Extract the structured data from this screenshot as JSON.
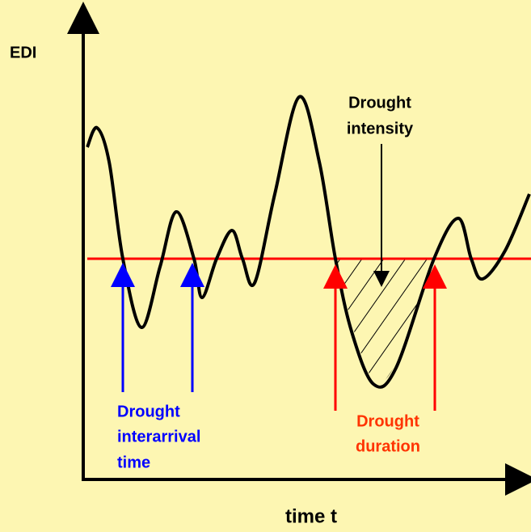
{
  "y_axis_label": "EDI",
  "x_axis_label": "time t",
  "annotations": {
    "intensity": [
      "Drought",
      "intensity"
    ],
    "interarrival": [
      "Drought",
      "interarrival",
      "time"
    ],
    "duration": [
      "Drought",
      "duration"
    ]
  }
}
